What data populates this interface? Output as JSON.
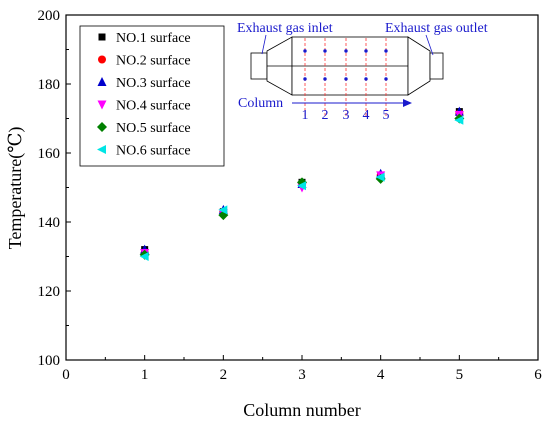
{
  "chart_data": {
    "type": "scatter",
    "xlabel": "Column number",
    "ylabel": "Temperature(℃)",
    "xlim": [
      0,
      6
    ],
    "ylim": [
      100,
      200
    ],
    "xticks": [
      "0",
      "1",
      "2",
      "3",
      "4",
      "5",
      "6"
    ],
    "yticks": [
      "100",
      "120",
      "140",
      "160",
      "180",
      "200"
    ],
    "grid": false,
    "legend_position": "top-left",
    "x": [
      1,
      2,
      3,
      4,
      5
    ],
    "series": [
      {
        "name": "NO.1 surface",
        "marker": "square",
        "color": "#000000",
        "values": [
          132,
          143,
          151.5,
          153.5,
          172
        ]
      },
      {
        "name": "NO.2 surface",
        "marker": "circle",
        "color": "#ff0000",
        "values": [
          131,
          143,
          151,
          153.5,
          171.5
        ]
      },
      {
        "name": "NO.3 surface",
        "marker": "triangle-up",
        "color": "#0000cc",
        "values": [
          132,
          143.5,
          151,
          154,
          172
        ]
      },
      {
        "name": "NO.4 surface",
        "marker": "triangle-down",
        "color": "#ff00ff",
        "values": [
          131,
          142.5,
          150,
          153.5,
          171
        ]
      },
      {
        "name": "NO.5 surface",
        "marker": "diamond",
        "color": "#008000",
        "values": [
          130.5,
          142,
          151.5,
          152.5,
          170
        ]
      },
      {
        "name": "NO.6 surface",
        "marker": "triangle-left",
        "color": "#00e5e5",
        "values": [
          130,
          143.5,
          150.5,
          153,
          169.5
        ]
      }
    ],
    "inset": {
      "inlet_label": "Exhaust gas inlet",
      "outlet_label": "Exhaust gas outlet",
      "column_label": "Column",
      "column_numbers": [
        "1",
        "2",
        "3",
        "4",
        "5"
      ]
    }
  }
}
